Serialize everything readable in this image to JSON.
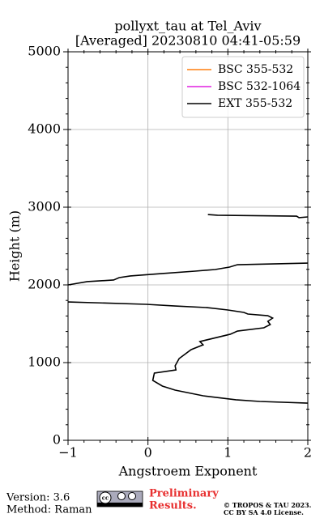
{
  "chart_data": {
    "type": "line",
    "title": [
      "pollyxt_tau at Tel_Aviv",
      "[Averaged] 20230810 04:41-05:59"
    ],
    "x_label": "Angstroem Exponent",
    "y_label": "Height (m)",
    "xlim": [
      -1,
      2
    ],
    "xticks": [
      {
        "value": -1,
        "label": "−1"
      },
      0,
      1,
      2
    ],
    "ylim": [
      0,
      5000
    ],
    "yticks": [
      0,
      1000,
      2000,
      3000,
      4000,
      5000
    ],
    "grid": true,
    "legend": "upper right",
    "series": [
      {
        "name": "BSC 355-532",
        "color": "#ff7f0e",
        "x": [],
        "values": []
      },
      {
        "name": "BSC 532-1064",
        "color": "#e020e0",
        "x": [],
        "values": []
      },
      {
        "name": "EXT 355-532",
        "color": "#000000",
        "x": [
          0.75,
          0.87,
          1.86,
          1.89,
          2.0,
          null,
          2.0,
          1.12,
          1.02,
          0.84,
          0.59,
          0.18,
          -0.22,
          -0.36,
          -0.43,
          -0.76,
          -1.0,
          null,
          -1.0,
          -0.02,
          0.34,
          0.74,
          1.0,
          1.2,
          1.25,
          1.5,
          1.56,
          1.5,
          1.53,
          1.45,
          1.12,
          1.03,
          0.65,
          0.69,
          0.54,
          0.39,
          0.34,
          0.35,
          0.08,
          0.06,
          0.18,
          0.34,
          0.69,
          1.1,
          1.4,
          2.0
        ],
        "values": [
          2906,
          2896,
          2885,
          2865,
          2875,
          null,
          2281,
          2260,
          2229,
          2198,
          2177,
          2146,
          2115,
          2094,
          2063,
          2042,
          2000,
          null,
          1781,
          1750,
          1729,
          1708,
          1677,
          1646,
          1625,
          1604,
          1573,
          1531,
          1490,
          1448,
          1406,
          1365,
          1271,
          1229,
          1167,
          1052,
          958,
          906,
          865,
          771,
          698,
          646,
          573,
          521,
          500,
          479
        ]
      }
    ]
  },
  "footer": {
    "version": "Version: 3.6",
    "method": "Method: Raman",
    "status": [
      "Preliminary",
      "Results."
    ],
    "copyright": [
      "© TROPOS & TAU 2023.",
      "CC BY SA 4.0 License."
    ]
  }
}
